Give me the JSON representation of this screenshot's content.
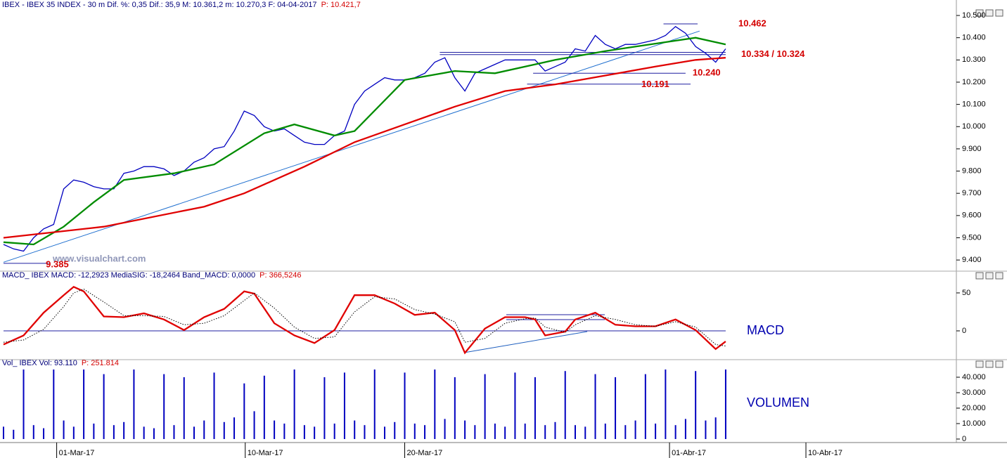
{
  "chart_data": [
    {
      "type": "line",
      "title": "IBEX - IBEX 35 INDEX - 30 m Dif. %: 0,35 Dif.: 35,9 M: 10.361,2 m: 10.270,3 F: 04-04-2017",
      "title_price": "P: 10.421,7",
      "watermark": "www.visualchart.com",
      "xlim": [
        0,
        95
      ],
      "ylim": [
        9.353,
        10.538
      ],
      "yticks": [
        {
          "value": 9.4,
          "label": "9.400"
        },
        {
          "value": 9.5,
          "label": "9.500"
        },
        {
          "value": 9.6,
          "label": "9.600"
        },
        {
          "value": 9.7,
          "label": "9.700"
        },
        {
          "value": 9.8,
          "label": "9.800"
        },
        {
          "value": 9.9,
          "label": "9.900"
        },
        {
          "value": 10.0,
          "label": "10.000"
        },
        {
          "value": 10.1,
          "label": "10.100"
        },
        {
          "value": 10.2,
          "label": "10.200"
        },
        {
          "value": 10.3,
          "label": "10.300"
        },
        {
          "value": 10.4,
          "label": "10.400"
        },
        {
          "value": 10.5,
          "label": "10.500"
        }
      ],
      "series": [
        {
          "color": "#0000c0",
          "values": [
            9.47,
            9.45,
            9.44,
            9.5,
            9.54,
            9.56,
            9.72,
            9.76,
            9.75,
            9.73,
            9.72,
            9.72,
            9.79,
            9.8,
            9.82,
            9.82,
            9.81,
            9.78,
            9.8,
            9.84,
            9.86,
            9.9,
            9.91,
            9.98,
            10.07,
            10.05,
            10.0,
            9.98,
            9.99,
            9.96,
            9.93,
            9.92,
            9.92,
            9.96,
            9.98,
            10.1,
            10.16,
            10.19,
            10.22,
            10.21,
            10.21,
            10.22,
            10.24,
            10.29,
            10.31,
            10.22,
            10.16,
            10.24,
            10.26,
            10.28,
            10.3,
            10.3,
            10.3,
            10.3,
            10.25,
            10.27,
            10.29,
            10.35,
            10.34,
            10.41,
            10.37,
            10.35,
            10.37,
            10.37,
            10.38,
            10.39,
            10.41,
            10.45,
            10.42,
            10.36,
            10.33,
            10.29,
            10.35
          ]
        },
        {
          "color": "#008c00",
          "x": [
            0,
            3,
            6,
            9,
            12,
            17,
            21,
            26,
            29,
            33,
            35,
            40,
            45,
            49,
            55,
            60,
            66,
            69,
            72
          ],
          "values": [
            9.48,
            9.47,
            9.55,
            9.66,
            9.76,
            9.79,
            9.83,
            9.97,
            10.01,
            9.96,
            9.98,
            10.21,
            10.25,
            10.24,
            10.3,
            10.34,
            10.38,
            10.4,
            10.37
          ]
        },
        {
          "color": "#e00000",
          "x": [
            0,
            10,
            20,
            24,
            30,
            35,
            40,
            45,
            50,
            55,
            60,
            65,
            69,
            72
          ],
          "values": [
            9.5,
            9.55,
            9.64,
            9.7,
            9.82,
            9.93,
            10.01,
            10.09,
            10.16,
            10.19,
            10.23,
            10.27,
            10.3,
            10.31
          ]
        }
      ],
      "trendline": {
        "color": "#1f6fcf",
        "x": [
          0,
          69.4
        ],
        "values": [
          9.39,
          10.43
        ]
      },
      "annotations": [
        {
          "label": "10.462",
          "values": [
            10.462
          ],
          "x": [
            65.8,
            69.2
          ]
        },
        {
          "label": "10.334 / 10.324",
          "values": [
            10.334,
            10.324
          ],
          "x": [
            43.5,
            72
          ]
        },
        {
          "label": "10.240",
          "values": [
            10.24
          ],
          "x": [
            52.8,
            68.0
          ]
        },
        {
          "label": "10.191",
          "values": [
            10.191
          ],
          "x": [
            52.2,
            68.5
          ]
        },
        {
          "label": "9.385",
          "values": [
            9.385
          ],
          "x": [
            0,
            4.5
          ]
        }
      ]
    },
    {
      "type": "line",
      "title": "MACD_ IBEX MACD: -12,2923 MediaSIG: -18,2464 Band_MACD: 0,0000",
      "title_price": "P: 366,5246",
      "label": "MACD",
      "xlim": [
        0,
        95
      ],
      "ylim": [
        -36.1,
        65.7
      ],
      "yticks": [
        0,
        50
      ],
      "reference_line": 0,
      "series": [
        {
          "color": "#e00000",
          "x": [
            0,
            2,
            4,
            6,
            7,
            8,
            10,
            12,
            14,
            16,
            18,
            20,
            22,
            24,
            25,
            27,
            29,
            31,
            33,
            35,
            37,
            39,
            41,
            43,
            45,
            46,
            48,
            50,
            52,
            53,
            54,
            56,
            57,
            59,
            61,
            63,
            65,
            67,
            69,
            71,
            72
          ],
          "values": [
            -18,
            -6,
            24,
            47,
            58,
            52,
            19,
            18,
            23,
            15,
            1,
            18,
            29,
            52,
            49,
            10,
            -6,
            -16,
            1,
            47,
            47,
            36,
            21,
            24,
            1,
            -29,
            3,
            18,
            18,
            15,
            -6,
            -1,
            15,
            24,
            8,
            6,
            6,
            15,
            1,
            -24,
            -14
          ]
        },
        {
          "color": "#000000",
          "style": "dotted",
          "x": [
            0,
            2,
            4,
            6,
            7,
            8,
            10,
            12,
            14,
            16,
            18,
            20,
            22,
            24,
            25,
            27,
            29,
            31,
            33,
            35,
            37,
            39,
            41,
            43,
            45,
            46,
            48,
            50,
            52,
            53,
            54,
            56,
            57,
            59,
            61,
            63,
            65,
            67,
            69,
            71,
            72
          ],
          "values": [
            -15,
            -12,
            2,
            32,
            50,
            55,
            38,
            20,
            20,
            19,
            8,
            10,
            20,
            40,
            50,
            30,
            5,
            -10,
            -8,
            25,
            45,
            42,
            28,
            22,
            12,
            -15,
            -10,
            10,
            16,
            17,
            5,
            -2,
            8,
            20,
            15,
            8,
            6,
            12,
            5,
            -18,
            -20
          ]
        }
      ]
    },
    {
      "type": "bar",
      "title": "Vol_ IBEX Vol: 93.110",
      "title_price": "P: 251.814",
      "label": "VOLUMEN",
      "color": "#0000c0",
      "xlim": [
        0,
        95
      ],
      "ylim": [
        -2273,
        45455
      ],
      "yticks": [
        0,
        {
          "value": 10000,
          "label": "10.000"
        },
        {
          "value": 20000,
          "label": "20.000"
        },
        {
          "value": 30000,
          "label": "30.000"
        },
        {
          "value": 40000,
          "label": "40.000"
        }
      ],
      "xticks": [
        {
          "value": 5.3,
          "label": "01-Mar-17"
        },
        {
          "value": 24.1,
          "label": "10-Mar-17"
        },
        {
          "value": 40,
          "label": "20-Mar-17"
        },
        {
          "value": 66.4,
          "label": "01-Abr-17"
        },
        {
          "value": 80,
          "label": "10-Abr-17"
        }
      ],
      "values": [
        8000,
        6000,
        45000,
        9000,
        7000,
        45000,
        12000,
        8000,
        45000,
        10000,
        42000,
        9000,
        11000,
        45000,
        8000,
        7000,
        42000,
        9000,
        40000,
        8000,
        12000,
        43000,
        11000,
        14000,
        36000,
        18000,
        41000,
        12000,
        10000,
        45000,
        9000,
        8000,
        40000,
        10000,
        43000,
        12000,
        9000,
        45000,
        8000,
        11000,
        43000,
        10000,
        9000,
        45000,
        13000,
        40000,
        12000,
        9000,
        42000,
        10000,
        8000,
        43000,
        10000,
        40000,
        9000,
        11000,
        44000,
        9000,
        8000,
        42000,
        10000,
        40000,
        9000,
        12000,
        42000,
        10000,
        45000,
        9000,
        13000,
        44000,
        12000,
        14000,
        45000
      ]
    }
  ]
}
